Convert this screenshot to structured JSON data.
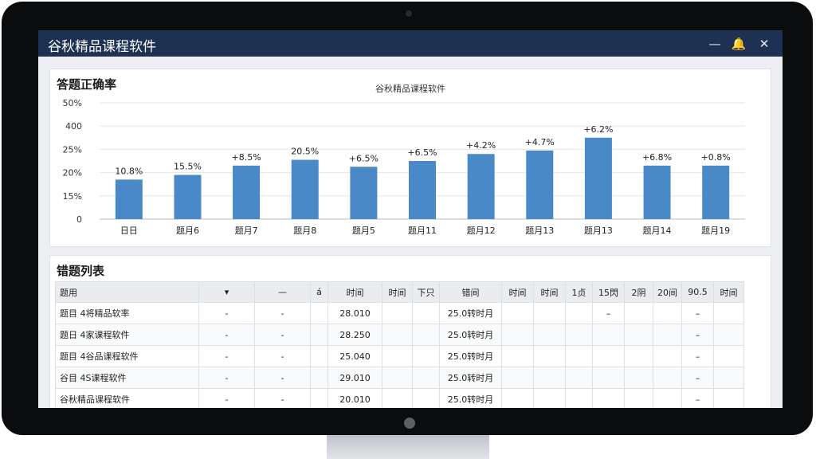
{
  "window": {
    "title": "谷秋精品课程软件"
  },
  "titlebar_icons": [
    {
      "icon": "minimize-icon",
      "glyph": "—"
    },
    {
      "icon": "bell-icon",
      "glyph": "🔔"
    },
    {
      "icon": "close-icon",
      "glyph": "✕"
    }
  ],
  "chart_panel": {
    "title": "答题正确率"
  },
  "chart_data": {
    "type": "bar",
    "title": "谷秋精品课程软件",
    "y_ticks": [
      "50%",
      "400",
      "25%",
      "20%",
      "15%",
      "0"
    ],
    "categories": [
      "日日",
      "题月6",
      "题月7",
      "题月8",
      "题月5",
      "题月11",
      "题月12",
      "题月13",
      "题月13",
      "题月14",
      "题月19"
    ],
    "values": [
      17,
      19,
      23,
      25.5,
      22.5,
      25,
      28,
      29.5,
      35,
      23,
      23
    ],
    "data_labels": [
      "10.8%",
      "15.5%",
      "+8.5%",
      "20.5%",
      "+6.5%",
      "+6.5%",
      "+4.2%",
      "+4.7%",
      "+6.2%",
      "+6.8%",
      "+0.8%"
    ],
    "ylim": [
      0,
      50
    ],
    "grid": true,
    "color": "#4a89c8"
  },
  "list_panel": {
    "title": "错题列表",
    "columns": [
      "题用",
      "▾",
      "—",
      "á",
      "时间",
      "时间",
      "下只",
      "错间",
      "时间",
      "时间",
      "1贞",
      "15閃",
      "2阴",
      "20间",
      "90.5",
      "时间"
    ],
    "rows": [
      [
        "题目 4将精品软率",
        "-",
        "-",
        "",
        "28.010",
        "",
        "",
        "25.0转时月",
        "",
        "",
        "",
        "–",
        "",
        "",
        "–",
        ""
      ],
      [
        "题日 4家课程软件",
        "-",
        "-",
        "",
        "28.250",
        "",
        "",
        "25.0转时月",
        "",
        "",
        "",
        "",
        "",
        "",
        "–",
        ""
      ],
      [
        "题目 4谷品课程软件",
        "-",
        "-",
        "",
        "25.040",
        "",
        "",
        "25.0转时月",
        "",
        "",
        "",
        "",
        "",
        "",
        "–",
        ""
      ],
      [
        "谷目 4S课程软件",
        "-",
        "-",
        "",
        "29.010",
        "",
        "",
        "25.0转时月",
        "",
        "",
        "",
        "",
        "",
        "",
        "–",
        ""
      ],
      [
        "谷秋精品课程软件",
        "-",
        "-",
        "",
        "20.010",
        "",
        "",
        "25.0转时月",
        "",
        "",
        "",
        "",
        "",
        "",
        "–",
        ""
      ]
    ]
  }
}
